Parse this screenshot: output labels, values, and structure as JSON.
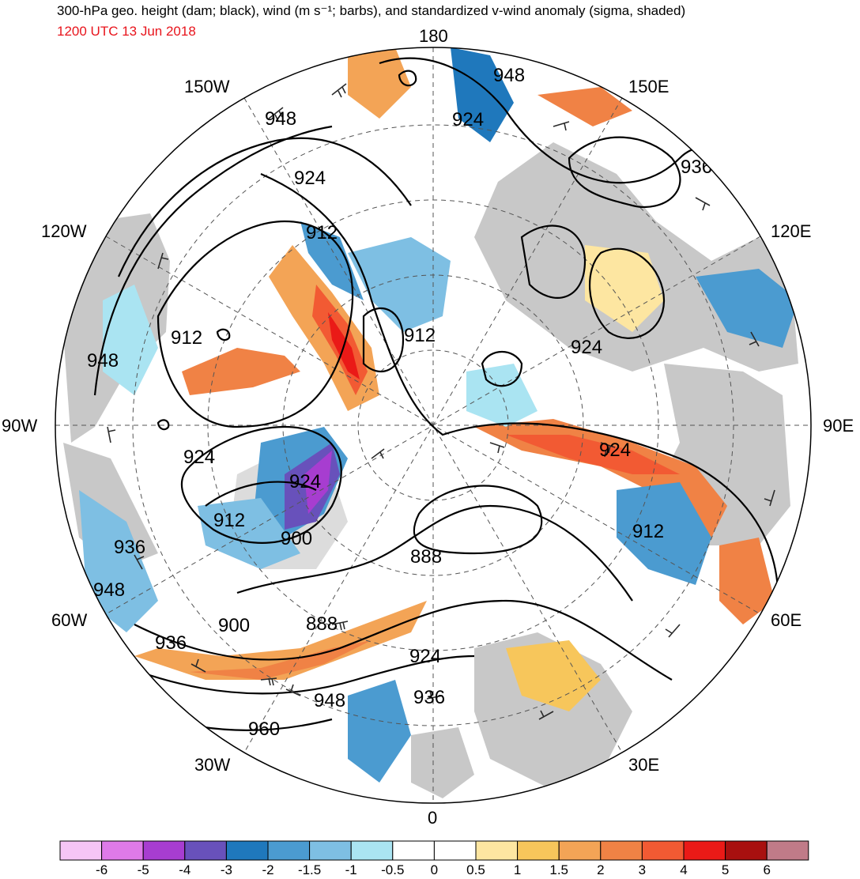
{
  "title": "300-hPa geo. height (dam; black), wind (m s⁻¹; barbs), and standardized v-wind anomaly (sigma, shaded)",
  "subtitle": "1200 UTC 13 Jun 2018",
  "longitude_labels": [
    {
      "id": "lon-180",
      "text": "180"
    },
    {
      "id": "lon-150e",
      "text": "150E"
    },
    {
      "id": "lon-120e",
      "text": "120E"
    },
    {
      "id": "lon-90e",
      "text": "90E"
    },
    {
      "id": "lon-60e",
      "text": "60E"
    },
    {
      "id": "lon-30e",
      "text": "30E"
    },
    {
      "id": "lon-0",
      "text": "0"
    },
    {
      "id": "lon-30w",
      "text": "30W"
    },
    {
      "id": "lon-60w",
      "text": "60W"
    },
    {
      "id": "lon-90w",
      "text": "90W"
    },
    {
      "id": "lon-120w",
      "text": "120W"
    },
    {
      "id": "lon-150w",
      "text": "150W"
    }
  ],
  "contour_labels": [
    "948",
    "924",
    "936",
    "912",
    "924",
    "948",
    "924",
    "912",
    "948",
    "912",
    "924",
    "924",
    "912",
    "900",
    "936",
    "888",
    "948",
    "900",
    "888",
    "936",
    "924",
    "936",
    "948",
    "960"
  ],
  "colorbar": {
    "colors": [
      "#f5c5f5",
      "#de7ae8",
      "#a73dd0",
      "#6851bb",
      "#1f78bc",
      "#4b9bd0",
      "#7ebfe3",
      "#aae4f2",
      "#ffffff",
      "#ffffff",
      "#fde6a1",
      "#f7c65b",
      "#f3a456",
      "#f08245",
      "#f25a33",
      "#ea1a17",
      "#a8100f",
      "#c07b88"
    ],
    "labels": [
      "-6",
      "-5",
      "-4",
      "-3",
      "-2",
      "-1.5",
      "-1",
      "-0.5",
      "0",
      "0.5",
      "1",
      "1.5",
      "2",
      "3",
      "4",
      "5",
      "6"
    ]
  }
}
